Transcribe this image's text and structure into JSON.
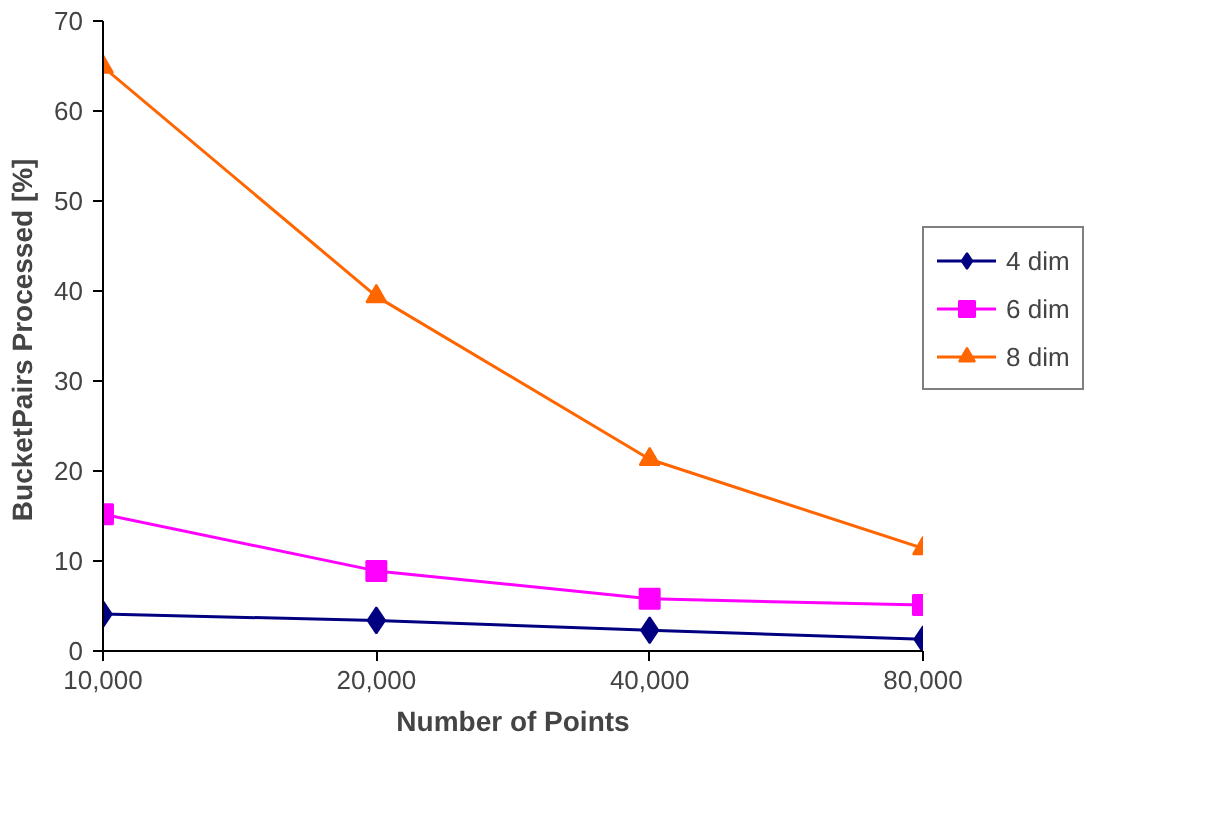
{
  "chart_data": {
    "type": "line",
    "xlabel": "Number of Points",
    "ylabel": "BucketPairs Processed  [%]",
    "categories": [
      "10,000",
      "20,000",
      "40,000",
      "80,000"
    ],
    "ylim": [
      0,
      70
    ],
    "yticks": [
      0,
      10,
      20,
      30,
      40,
      50,
      60,
      70
    ],
    "grid": false,
    "legend": "right",
    "series": [
      {
        "name": "4 dim",
        "color": "#000080",
        "marker": "diamond",
        "values": [
          4.1,
          3.4,
          2.3,
          1.3
        ]
      },
      {
        "name": "6 dim",
        "color": "#ff00ff",
        "marker": "square",
        "values": [
          15.2,
          8.9,
          5.8,
          5.1
        ]
      },
      {
        "name": "8 dim",
        "color": "#ff6600",
        "marker": "triangle",
        "values": [
          64.9,
          39.4,
          21.3,
          11.4
        ]
      }
    ]
  }
}
